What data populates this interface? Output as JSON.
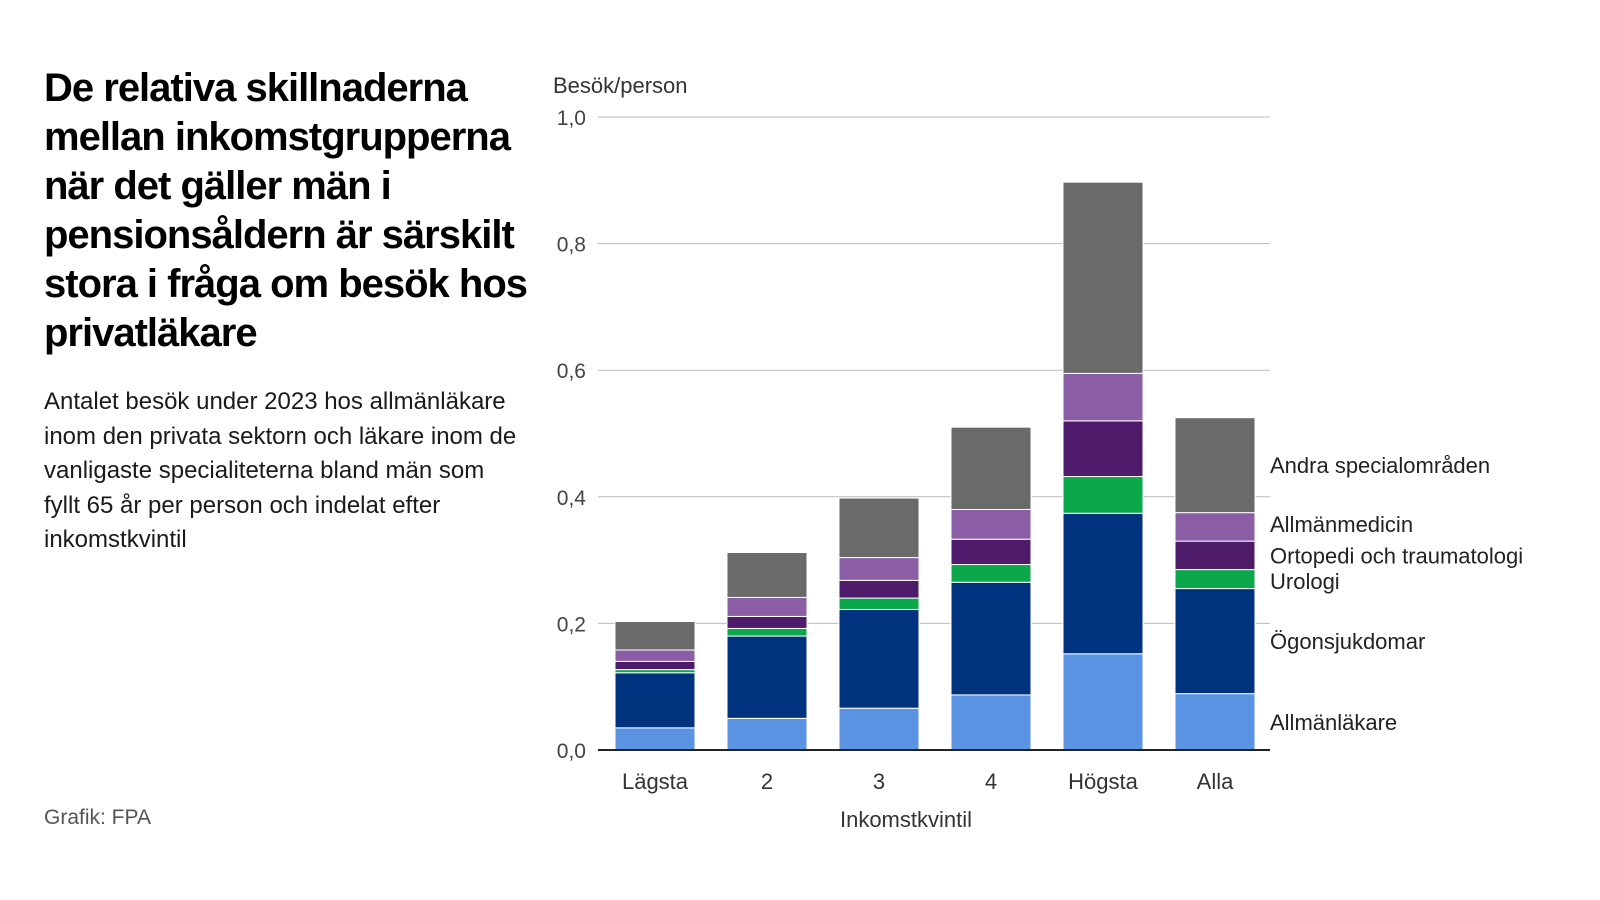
{
  "title": "De relativa skillnaderna mellan inkomstgrupperna när det gäller män i pensionsåldern är särskilt stora i fråga om besök hos privatläkare",
  "subtitle": "Antalet besök under 2023 hos allmänläkare inom den privata sektorn och läkare inom de vanligaste specialiteterna bland män som fyllt 65 år per person och indelat efter inkomstkvintil",
  "source": "Grafik: FPA",
  "colors": {
    "Allmänläkare": "#5b93e3",
    "Ögonsjukdomar": "#00337d",
    "Urologi": "#0aa74b",
    "Ortopedi och traumatologi": "#4f1c6b",
    "Allmänmedicin": "#8b5da4",
    "Andra specialområden": "#6a6a6a",
    "gridline": "#bbbbbb",
    "axis": "#222222",
    "text": "#222222"
  },
  "chart_data": {
    "type": "bar",
    "stacked": true,
    "ylabel": "Besök/person",
    "xlabel": "Inkomstkvintil",
    "ylim": [
      0,
      1.0
    ],
    "yticks": [
      0.0,
      0.2,
      0.4,
      0.6,
      0.8,
      1.0
    ],
    "ytick_labels": [
      "0,0",
      "0,2",
      "0,4",
      "0,6",
      "0,8",
      "1,0"
    ],
    "grid": true,
    "legend_placement": "right, aligned with last bar",
    "categories": [
      "Lägsta",
      "2",
      "3",
      "4",
      "Högsta",
      "Alla"
    ],
    "series": [
      {
        "name": "Allmänläkare",
        "values": [
          0.035,
          0.05,
          0.066,
          0.087,
          0.152,
          0.089
        ]
      },
      {
        "name": "Ögonsjukdomar",
        "values": [
          0.087,
          0.13,
          0.156,
          0.178,
          0.222,
          0.166
        ]
      },
      {
        "name": "Urologi",
        "values": [
          0.005,
          0.012,
          0.018,
          0.028,
          0.058,
          0.03
        ]
      },
      {
        "name": "Ortopedi och traumatologi",
        "values": [
          0.013,
          0.019,
          0.028,
          0.04,
          0.088,
          0.045
        ]
      },
      {
        "name": "Allmänmedicin",
        "values": [
          0.018,
          0.03,
          0.036,
          0.047,
          0.075,
          0.045
        ]
      },
      {
        "name": "Andra specialområden",
        "values": [
          0.045,
          0.071,
          0.094,
          0.13,
          0.302,
          0.15
        ]
      }
    ]
  }
}
